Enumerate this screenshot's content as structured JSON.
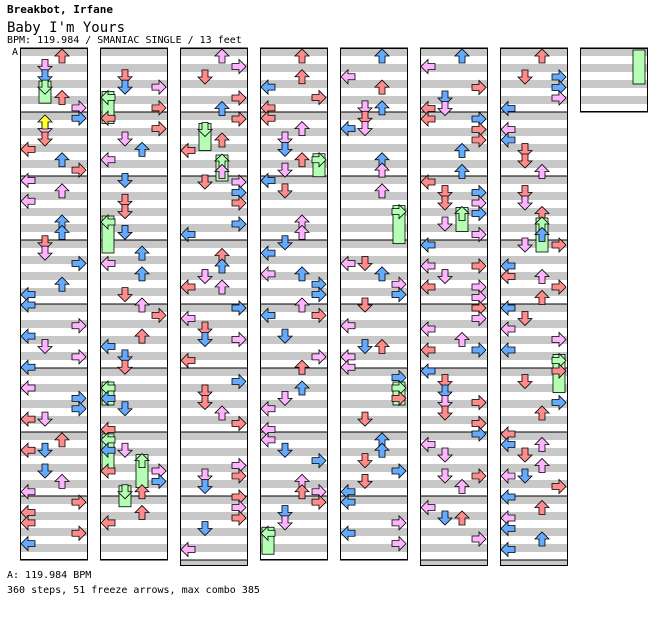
{
  "header": {
    "artist": "Breakbot, Irfane",
    "title": "Baby I'm Yours",
    "info": "BPM: 119.984 / SMANIAC SINGLE / 13 feet"
  },
  "marker": "A",
  "footer": {
    "bpm_line": "A: 119.984 BPM",
    "summary": "360 steps, 51 freeze arrows, max combo 385"
  },
  "colors": {
    "stripe_gray": "#c8c8c8",
    "stripe_white": "#ffffff",
    "red": "#ff8c8c",
    "blue": "#64aaff",
    "pink": "#ffb4ff",
    "green": "#b4ffb4",
    "yellow": "#ffff32"
  },
  "notes_per_column": 48
}
